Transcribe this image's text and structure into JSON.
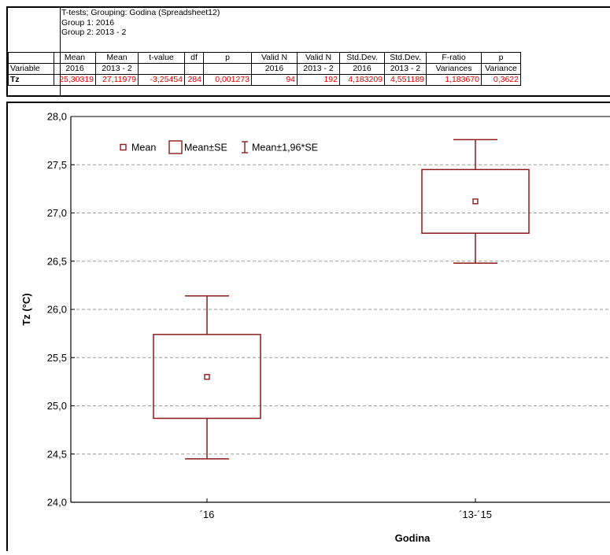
{
  "table": {
    "header_lines": [
      "T-tests; Grouping: Godina (Spreadsheet12)",
      "Group 1: 2016",
      "Group 2: 2013 - 2"
    ],
    "columns": [
      {
        "top": "",
        "bottom": "Variable"
      },
      {
        "top": "Mean",
        "bottom": "2016"
      },
      {
        "top": "Mean",
        "bottom": "2013 - 2"
      },
      {
        "top": "t-value",
        "bottom": ""
      },
      {
        "top": "df",
        "bottom": ""
      },
      {
        "top": "p",
        "bottom": ""
      },
      {
        "top": "Valid N",
        "bottom": "2016"
      },
      {
        "top": "Valid N",
        "bottom": "2013 - 2"
      },
      {
        "top": "Std.Dev.",
        "bottom": "2016"
      },
      {
        "top": "Std.Dev.",
        "bottom": "2013 - 2"
      },
      {
        "top": "F-ratio",
        "bottom": "Variances"
      },
      {
        "top": "p",
        "bottom": "Variance"
      }
    ],
    "row": [
      "Tz",
      "25,30319",
      "27,11979",
      "-3,25454",
      "284",
      "0,001273",
      "94",
      "192",
      "4,183209",
      "4,551189",
      "1,183670",
      "0,3622"
    ]
  },
  "chart_data": {
    "type": "box",
    "categories": [
      "´16",
      "´13-´15"
    ],
    "mean": [
      25.3,
      27.12
    ],
    "se_low": [
      24.87,
      26.79
    ],
    "se_high": [
      25.74,
      27.45
    ],
    "ci_low": [
      24.45,
      26.48
    ],
    "ci_high": [
      26.14,
      27.76
    ],
    "ylabel": "Tz (°C)",
    "xlabel": "Godina",
    "ylim": [
      24.0,
      28.0
    ],
    "yticks": [
      "24,0",
      "24,5",
      "25,0",
      "25,5",
      "26,0",
      "26,5",
      "27,0",
      "27,5",
      "28,0"
    ],
    "grid": true,
    "legend": [
      "Mean",
      "Mean±SE",
      "Mean±1,96*SE"
    ],
    "legend_position": "top-left",
    "color": "#8b1a1a"
  }
}
